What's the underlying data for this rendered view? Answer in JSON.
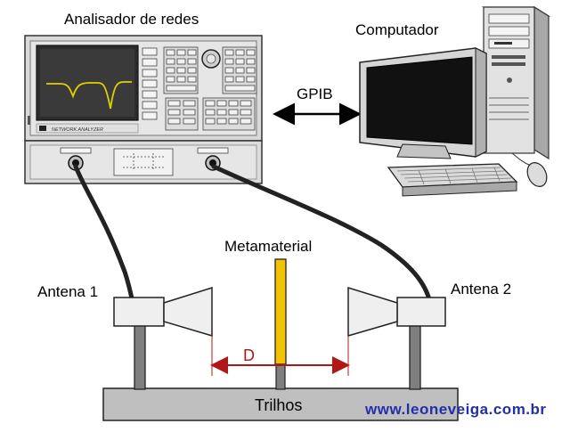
{
  "labels": {
    "network_analyzer": "Analisador de redes",
    "computer": "Computador",
    "link": "GPIB",
    "metamaterial": "Metamaterial",
    "antenna_1": "Antena 1",
    "antenna_2": "Antena 2",
    "distance": "D",
    "rails": "Trilhos",
    "instrument_badge": "NETWORK ANALYZER"
  },
  "watermark": "www.leoneveiga.com.br",
  "colors": {
    "trace": "#e0d000",
    "screen": "#2c2c2c",
    "cable": "#222222",
    "metamaterial": "#f2c200",
    "distance_arrow": "#b01818",
    "rails": "#bfbfbf",
    "watermark": "#2230a8",
    "monitor_screen": "#111111"
  }
}
